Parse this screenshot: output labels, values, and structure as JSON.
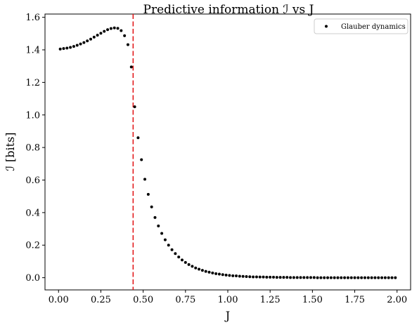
{
  "chart_data": {
    "type": "scatter",
    "title": "Predictive information ℐ vs J",
    "xlabel": "J",
    "ylabel": "ℐ [bits]",
    "xlim": [
      -0.08,
      2.08
    ],
    "ylim": [
      -0.075,
      1.62
    ],
    "xticks": [
      0.0,
      0.25,
      0.5,
      0.75,
      1.0,
      1.25,
      1.5,
      1.75,
      2.0
    ],
    "xtick_labels": [
      "0.00",
      "0.25",
      "0.50",
      "0.75",
      "1.00",
      "1.25",
      "1.50",
      "1.75",
      "2.00"
    ],
    "yticks": [
      0.0,
      0.2,
      0.4,
      0.6,
      0.8,
      1.0,
      1.2,
      1.4,
      1.6
    ],
    "ytick_labels": [
      "0.0",
      "0.2",
      "0.4",
      "0.6",
      "0.8",
      "1.0",
      "1.2",
      "1.4",
      "1.6"
    ],
    "grid": false,
    "legend_position": "top-right",
    "critical_line": {
      "x": 0.4407,
      "color": "#e31a1c",
      "style": "dashed"
    },
    "series": [
      {
        "name": "Glauber dynamics",
        "color": "#000000",
        "x": [
          0.01,
          0.03,
          0.05,
          0.07,
          0.09,
          0.11,
          0.13,
          0.15,
          0.17,
          0.19,
          0.21,
          0.23,
          0.25,
          0.27,
          0.29,
          0.31,
          0.33,
          0.35,
          0.37,
          0.39,
          0.41,
          0.43,
          0.45,
          0.47,
          0.49,
          0.51,
          0.53,
          0.55,
          0.57,
          0.59,
          0.61,
          0.63,
          0.65,
          0.67,
          0.69,
          0.71,
          0.73,
          0.75,
          0.77,
          0.79,
          0.81,
          0.83,
          0.85,
          0.87,
          0.89,
          0.91,
          0.93,
          0.95,
          0.97,
          0.99,
          1.01,
          1.03,
          1.05,
          1.07,
          1.09,
          1.11,
          1.13,
          1.15,
          1.17,
          1.19,
          1.21,
          1.23,
          1.25,
          1.27,
          1.29,
          1.31,
          1.33,
          1.35,
          1.37,
          1.39,
          1.41,
          1.43,
          1.45,
          1.47,
          1.49,
          1.51,
          1.53,
          1.55,
          1.57,
          1.59,
          1.61,
          1.63,
          1.65,
          1.67,
          1.69,
          1.71,
          1.73,
          1.75,
          1.77,
          1.79,
          1.81,
          1.83,
          1.85,
          1.87,
          1.89,
          1.91,
          1.93,
          1.95,
          1.97,
          1.99
        ],
        "y": [
          1.405,
          1.408,
          1.411,
          1.415,
          1.421,
          1.428,
          1.436,
          1.445,
          1.455,
          1.466,
          1.478,
          1.49,
          1.502,
          1.514,
          1.524,
          1.531,
          1.535,
          1.532,
          1.518,
          1.487,
          1.432,
          1.295,
          1.05,
          0.86,
          0.725,
          0.605,
          0.512,
          0.435,
          0.37,
          0.318,
          0.272,
          0.233,
          0.2,
          0.172,
          0.148,
          0.127,
          0.109,
          0.094,
          0.081,
          0.07,
          0.06,
          0.052,
          0.045,
          0.039,
          0.034,
          0.029,
          0.025,
          0.022,
          0.019,
          0.016,
          0.014,
          0.012,
          0.011,
          0.009,
          0.008,
          0.007,
          0.006,
          0.005,
          0.005,
          0.004,
          0.004,
          0.003,
          0.003,
          0.003,
          0.002,
          0.002,
          0.002,
          0.002,
          0.001,
          0.001,
          0.001,
          0.001,
          0.001,
          0.001,
          0.001,
          0.001,
          0.0,
          0.0,
          0.0,
          0.0,
          0.0,
          0.0,
          0.0,
          0.0,
          0.0,
          0.0,
          0.0,
          0.0,
          0.0,
          0.0,
          0.0,
          0.0,
          0.0,
          0.0,
          0.0,
          0.0,
          0.0,
          0.0,
          0.0,
          0.0
        ]
      }
    ]
  }
}
